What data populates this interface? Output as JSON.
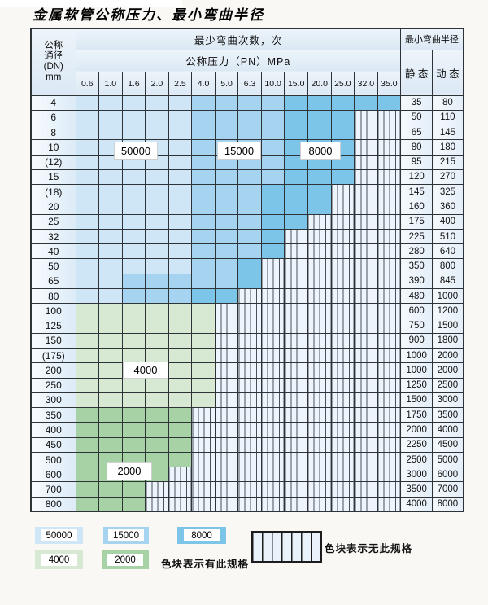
{
  "title": "金属软管公称压力、最小弯曲半径",
  "table": {
    "header": {
      "dn_label_lines": [
        "公称",
        "通径",
        "(DN)",
        "mm"
      ],
      "bend_cycles_label": "最少弯曲次数，次",
      "pressure_label": "公称压力（PN）MPa",
      "pressure_columns": [
        "0.6",
        "1.0",
        "1.6",
        "2.0",
        "2.5",
        "4.0",
        "5.0",
        "6.3",
        "10.0",
        "15.0",
        "20.0",
        "25.0",
        "32.0",
        "35.0"
      ],
      "min_bend_radius_label": "最小弯曲半径",
      "static_label": "静 态",
      "dynamic_label": "动 态"
    },
    "rows": [
      {
        "dn": "4",
        "segments": [
          [
            "50000",
            5
          ],
          [
            "15000",
            4
          ],
          [
            "8000",
            5
          ]
        ],
        "static": "35",
        "dynamic": "80"
      },
      {
        "dn": "6",
        "segments": [
          [
            "50000",
            5
          ],
          [
            "15000",
            4
          ],
          [
            "8000",
            3
          ]
        ],
        "static": "50",
        "dynamic": "110"
      },
      {
        "dn": "8",
        "segments": [
          [
            "50000",
            5
          ],
          [
            "15000",
            4
          ],
          [
            "8000",
            3
          ]
        ],
        "static": "65",
        "dynamic": "145"
      },
      {
        "dn": "10",
        "segments": [
          [
            "50000",
            5
          ],
          [
            "15000",
            4
          ],
          [
            "8000",
            3
          ]
        ],
        "static": "80",
        "dynamic": "180"
      },
      {
        "dn": "(12)",
        "segments": [
          [
            "50000",
            5
          ],
          [
            "15000",
            4
          ],
          [
            "8000",
            3
          ]
        ],
        "static": "95",
        "dynamic": "215"
      },
      {
        "dn": "15",
        "segments": [
          [
            "50000",
            5
          ],
          [
            "15000",
            4
          ],
          [
            "8000",
            3
          ]
        ],
        "static": "120",
        "dynamic": "270"
      },
      {
        "dn": "(18)",
        "segments": [
          [
            "50000",
            5
          ],
          [
            "15000",
            3
          ],
          [
            "8000",
            3
          ]
        ],
        "static": "145",
        "dynamic": "325"
      },
      {
        "dn": "20",
        "segments": [
          [
            "50000",
            5
          ],
          [
            "15000",
            3
          ],
          [
            "8000",
            3
          ]
        ],
        "static": "160",
        "dynamic": "360"
      },
      {
        "dn": "25",
        "segments": [
          [
            "50000",
            5
          ],
          [
            "15000",
            3
          ],
          [
            "8000",
            2
          ]
        ],
        "static": "175",
        "dynamic": "400"
      },
      {
        "dn": "32",
        "segments": [
          [
            "50000",
            5
          ],
          [
            "15000",
            3
          ],
          [
            "8000",
            1
          ]
        ],
        "static": "225",
        "dynamic": "510"
      },
      {
        "dn": "40",
        "segments": [
          [
            "50000",
            5
          ],
          [
            "15000",
            3
          ],
          [
            "8000",
            1
          ]
        ],
        "static": "280",
        "dynamic": "640"
      },
      {
        "dn": "50",
        "segments": [
          [
            "50000",
            5
          ],
          [
            "15000",
            2
          ],
          [
            "8000",
            1
          ]
        ],
        "static": "350",
        "dynamic": "800"
      },
      {
        "dn": "65",
        "segments": [
          [
            "50000",
            2
          ],
          [
            "15000",
            5
          ],
          [
            "8000",
            1
          ]
        ],
        "static": "390",
        "dynamic": "845"
      },
      {
        "dn": "80",
        "segments": [
          [
            "50000",
            2
          ],
          [
            "15000",
            3
          ],
          [
            "8000",
            2
          ]
        ],
        "static": "480",
        "dynamic": "1000"
      },
      {
        "dn": "100",
        "segments": [
          [
            "4000",
            6
          ]
        ],
        "static": "600",
        "dynamic": "1200"
      },
      {
        "dn": "125",
        "segments": [
          [
            "4000",
            6
          ]
        ],
        "static": "750",
        "dynamic": "1500"
      },
      {
        "dn": "150",
        "segments": [
          [
            "4000",
            6
          ]
        ],
        "static": "900",
        "dynamic": "1800"
      },
      {
        "dn": "(175)",
        "segments": [
          [
            "4000",
            6
          ]
        ],
        "static": "1000",
        "dynamic": "2000"
      },
      {
        "dn": "200",
        "segments": [
          [
            "4000",
            6
          ]
        ],
        "static": "1000",
        "dynamic": "2000"
      },
      {
        "dn": "250",
        "segments": [
          [
            "4000",
            6
          ]
        ],
        "static": "1250",
        "dynamic": "2500"
      },
      {
        "dn": "300",
        "segments": [
          [
            "4000",
            6
          ]
        ],
        "static": "1500",
        "dynamic": "3000"
      },
      {
        "dn": "350",
        "segments": [
          [
            "2000",
            5
          ]
        ],
        "static": "1750",
        "dynamic": "3500"
      },
      {
        "dn": "400",
        "segments": [
          [
            "2000",
            5
          ]
        ],
        "static": "2000",
        "dynamic": "4000"
      },
      {
        "dn": "450",
        "segments": [
          [
            "2000",
            5
          ]
        ],
        "static": "2250",
        "dynamic": "4500"
      },
      {
        "dn": "500",
        "segments": [
          [
            "2000",
            5
          ]
        ],
        "static": "2500",
        "dynamic": "5000"
      },
      {
        "dn": "600",
        "segments": [
          [
            "2000",
            4
          ]
        ],
        "static": "3000",
        "dynamic": "6000"
      },
      {
        "dn": "700",
        "segments": [
          [
            "2000",
            3
          ]
        ],
        "static": "3500",
        "dynamic": "7000"
      },
      {
        "dn": "800",
        "segments": [
          [
            "2000",
            3
          ]
        ],
        "static": "4000",
        "dynamic": "8000"
      }
    ]
  },
  "overlay_labels": [
    {
      "text": "50000"
    },
    {
      "text": "15000"
    },
    {
      "text": "8000"
    },
    {
      "text": "4000"
    },
    {
      "text": "2000"
    }
  ],
  "legend": {
    "has_spec_items": [
      {
        "cycles": "50000"
      },
      {
        "cycles": "15000"
      },
      {
        "cycles": "8000"
      },
      {
        "cycles": "4000"
      },
      {
        "cycles": "2000"
      }
    ],
    "has_spec_note": "色块表示有此规格",
    "no_spec_note": "色块表示无此规格"
  },
  "colors": {
    "50000": "#cfe6f7",
    "15000": "#a5d3f0",
    "8000": "#7cc4e8",
    "4000": "#d8e9d3",
    "2000": "#a6d2a5",
    "hatch_background": "#edf4fb",
    "grid_line": "#2e3338"
  }
}
